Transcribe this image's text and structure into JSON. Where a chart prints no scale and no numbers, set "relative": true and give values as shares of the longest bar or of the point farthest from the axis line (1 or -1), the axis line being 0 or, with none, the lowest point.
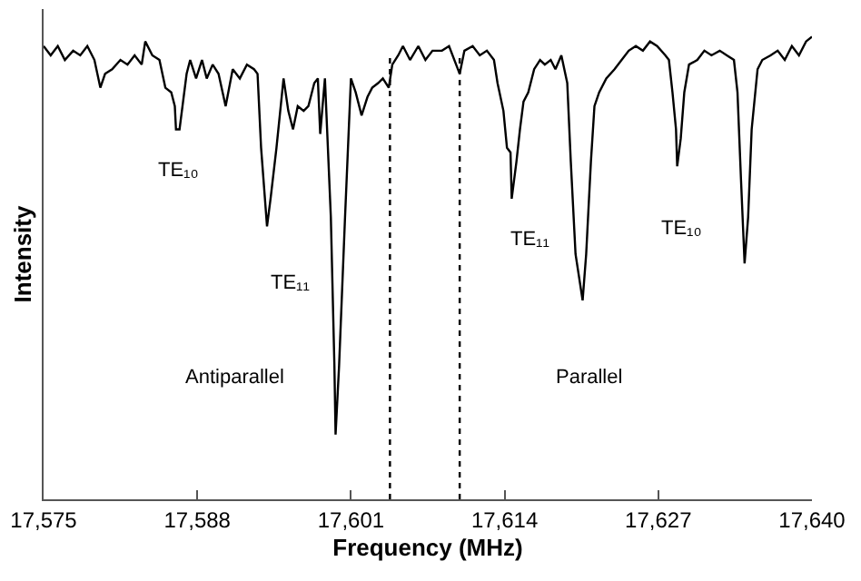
{
  "chart_data": {
    "type": "line",
    "relative": true,
    "xlabel": "Frequency (MHz)",
    "ylabel": "Intensity",
    "grid": false,
    "marker": "none",
    "line_style": "solid",
    "xlim": [
      17575,
      17640
    ],
    "xticks": [
      {
        "value": 17575,
        "label": "17,575"
      },
      {
        "value": 17588,
        "label": "17,588"
      },
      {
        "value": 17601,
        "label": "17,601"
      },
      {
        "value": 17614,
        "label": "17,614"
      },
      {
        "value": 17627,
        "label": "17,627"
      },
      {
        "value": 17640,
        "label": "17,640"
      }
    ],
    "ref_lines": [
      {
        "axis": "x",
        "value": 17604.3,
        "color": "#000000",
        "line_style": "dotted"
      },
      {
        "axis": "x",
        "value": 17610.2,
        "color": "#000000",
        "line_style": "dotted"
      }
    ],
    "annotations": [
      "TE₁₀",
      "TE₁₁",
      "Antiparallel",
      "TE₁₁",
      "TE₁₀",
      "Parallel"
    ],
    "series": [
      {
        "color": "#000000",
        "x": [
          17575.0,
          17575.6,
          17576.2,
          17576.8,
          17577.5,
          17578.1,
          17578.7,
          17579.3,
          17579.8,
          17580.2,
          17580.8,
          17581.5,
          17582.1,
          17582.7,
          17583.3,
          17583.6,
          17584.2,
          17584.8,
          17585.3,
          17585.8,
          17586.1,
          17586.2,
          17586.5,
          17586.8,
          17587.1,
          17587.4,
          17587.9,
          17588.4,
          17588.8,
          17589.3,
          17589.8,
          17590.4,
          17591.0,
          17591.6,
          17592.2,
          17592.8,
          17593.1,
          17593.4,
          17593.9,
          17594.2,
          17594.7,
          17595.3,
          17595.7,
          17596.1,
          17596.5,
          17597.0,
          17597.4,
          17597.9,
          17598.2,
          17598.4,
          17598.8,
          17599.3,
          17599.6,
          17599.7,
          17600.0,
          17600.5,
          17601.0,
          17601.4,
          17601.9,
          17602.4,
          17602.8,
          17603.3,
          17603.7,
          17604.2,
          17604.5,
          17605.0,
          17605.4,
          17606.0,
          17606.7,
          17607.3,
          17607.9,
          17608.7,
          17609.3,
          17610.2,
          17610.6,
          17611.3,
          17611.9,
          17612.5,
          17613.1,
          17613.4,
          17613.9,
          17614.2,
          17614.5,
          17614.6,
          17615.0,
          17615.3,
          17615.6,
          17616.0,
          17616.5,
          17617.0,
          17617.4,
          17617.9,
          17618.3,
          17618.8,
          17619.3,
          17619.6,
          17620.0,
          17620.6,
          17620.9,
          17621.3,
          17621.6,
          17622.0,
          17622.6,
          17623.3,
          17623.9,
          17624.5,
          17625.1,
          17625.7,
          17626.3,
          17626.9,
          17627.6,
          17627.9,
          17628.2,
          17628.5,
          17628.6,
          17628.9,
          17629.2,
          17629.6,
          17630.3,
          17630.9,
          17631.5,
          17632.2,
          17632.8,
          17633.4,
          17633.7,
          17634.0,
          17634.3,
          17634.6,
          17634.9,
          17635.4,
          17635.8,
          17636.5,
          17637.1,
          17637.7,
          17638.3,
          17638.9,
          17639.5,
          17640.0
        ],
        "values": [
          0.98,
          0.96,
          0.98,
          0.95,
          0.97,
          0.96,
          0.98,
          0.95,
          0.89,
          0.92,
          0.93,
          0.95,
          0.94,
          0.96,
          0.94,
          0.99,
          0.96,
          0.95,
          0.89,
          0.88,
          0.85,
          0.8,
          0.8,
          0.86,
          0.92,
          0.95,
          0.91,
          0.95,
          0.91,
          0.94,
          0.92,
          0.85,
          0.93,
          0.91,
          0.94,
          0.93,
          0.92,
          0.76,
          0.59,
          0.65,
          0.76,
          0.91,
          0.84,
          0.8,
          0.85,
          0.84,
          0.85,
          0.9,
          0.91,
          0.79,
          0.91,
          0.61,
          0.29,
          0.14,
          0.29,
          0.61,
          0.91,
          0.88,
          0.83,
          0.87,
          0.89,
          0.9,
          0.91,
          0.89,
          0.94,
          0.96,
          0.98,
          0.95,
          0.98,
          0.95,
          0.97,
          0.97,
          0.98,
          0.92,
          0.97,
          0.98,
          0.96,
          0.97,
          0.95,
          0.9,
          0.84,
          0.76,
          0.75,
          0.65,
          0.73,
          0.8,
          0.86,
          0.88,
          0.93,
          0.95,
          0.94,
          0.95,
          0.93,
          0.96,
          0.9,
          0.73,
          0.53,
          0.43,
          0.53,
          0.73,
          0.85,
          0.88,
          0.91,
          0.93,
          0.95,
          0.97,
          0.98,
          0.97,
          0.99,
          0.98,
          0.96,
          0.95,
          0.88,
          0.8,
          0.72,
          0.78,
          0.88,
          0.94,
          0.95,
          0.97,
          0.96,
          0.97,
          0.96,
          0.95,
          0.88,
          0.69,
          0.51,
          0.61,
          0.8,
          0.93,
          0.95,
          0.96,
          0.97,
          0.95,
          0.98,
          0.96,
          0.99,
          1
        ]
      }
    ]
  }
}
